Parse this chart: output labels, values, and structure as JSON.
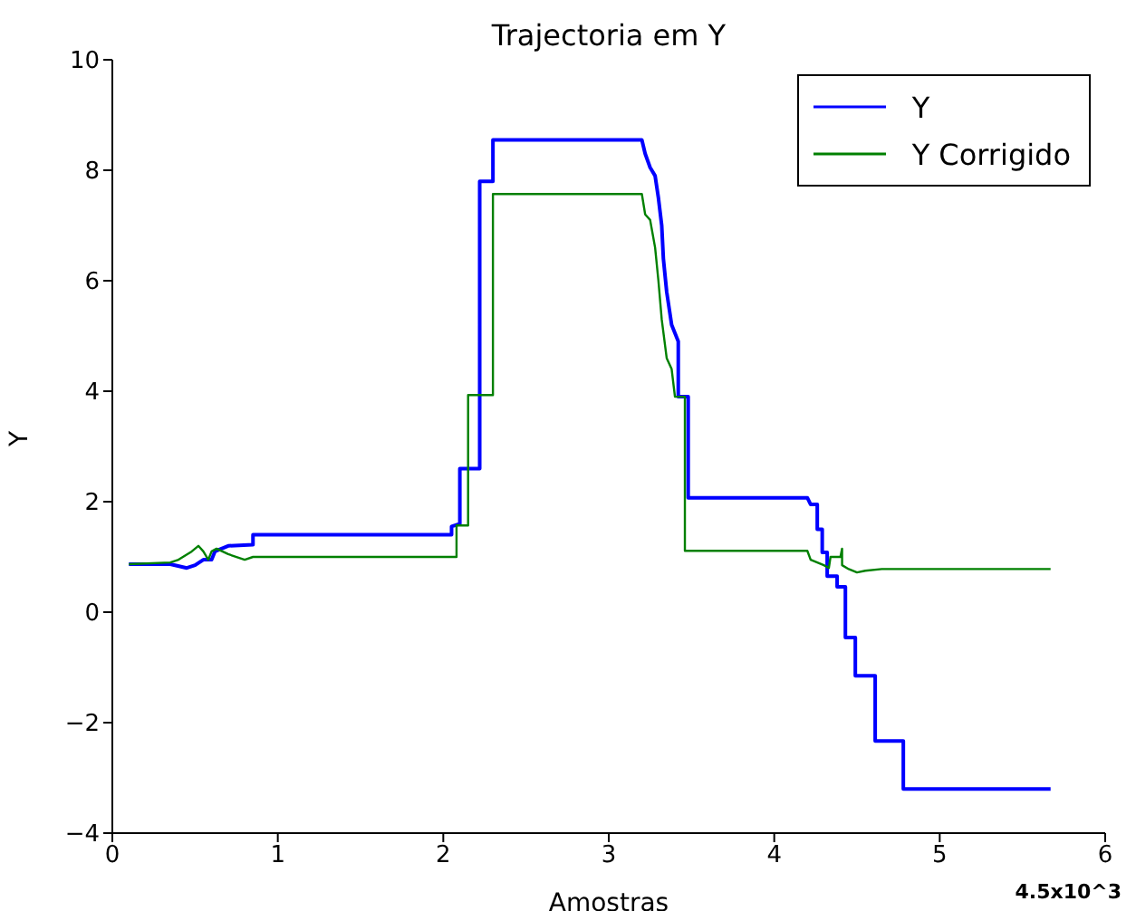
{
  "chart_data": {
    "type": "line",
    "title": "Trajectoria em Y",
    "xlabel": "Amostras",
    "ylabel": "Y",
    "annotations": [
      "4.5x10^3"
    ],
    "xlim": [
      0,
      6
    ],
    "xticks": [
      0,
      1,
      2,
      3,
      4,
      5,
      6
    ],
    "ylim": [
      -4,
      10
    ],
    "yticks": [
      {
        "value": -4,
        "label": "−4"
      },
      {
        "value": -2,
        "label": "−2"
      },
      0,
      2,
      4,
      6,
      8,
      10
    ],
    "grid": false,
    "legend": "top right",
    "marker": "none",
    "line_style": "solid",
    "series": [
      {
        "name": "Y",
        "color": "#0000ff",
        "x": [
          0.1,
          0.35,
          0.45,
          0.5,
          0.55,
          0.6,
          0.62,
          0.7,
          0.85,
          0.85,
          2.05,
          2.05,
          2.1,
          2.1,
          2.22,
          2.22,
          2.3,
          2.3,
          3.2,
          3.22,
          3.25,
          3.28,
          3.3,
          3.32,
          3.33,
          3.35,
          3.38,
          3.42,
          3.42,
          3.48,
          3.48,
          4.2,
          4.22,
          4.26,
          4.26,
          4.29,
          4.29,
          4.32,
          4.32,
          4.38,
          4.38,
          4.43,
          4.43,
          4.49,
          4.49,
          4.61,
          4.61,
          4.78,
          4.78,
          5.67
        ],
        "values": [
          0.87,
          0.87,
          0.8,
          0.85,
          0.95,
          0.95,
          1.1,
          1.2,
          1.22,
          1.4,
          1.4,
          1.55,
          1.6,
          2.6,
          2.6,
          7.8,
          7.8,
          8.55,
          8.55,
          8.3,
          8.05,
          7.9,
          7.5,
          7.0,
          6.4,
          5.8,
          5.2,
          4.9,
          3.9,
          3.9,
          2.07,
          2.07,
          1.95,
          1.95,
          1.5,
          1.5,
          1.08,
          1.08,
          0.65,
          0.65,
          0.46,
          0.46,
          -0.46,
          -0.46,
          -1.15,
          -1.15,
          -2.33,
          -2.33,
          -3.2,
          -3.2
        ]
      },
      {
        "name": "Y Corrigido",
        "color": "#008000",
        "x": [
          0.1,
          0.35,
          0.4,
          0.48,
          0.52,
          0.55,
          0.58,
          0.6,
          0.63,
          0.7,
          0.8,
          0.85,
          2.08,
          2.08,
          2.15,
          2.15,
          2.3,
          2.3,
          3.2,
          3.22,
          3.25,
          3.28,
          3.3,
          3.32,
          3.35,
          3.38,
          3.4,
          3.46,
          3.46,
          4.2,
          4.22,
          4.3,
          4.33,
          4.34,
          4.4,
          4.41,
          4.41,
          4.45,
          4.5,
          4.55,
          4.65,
          5.67
        ],
        "values": [
          0.87,
          0.9,
          0.95,
          1.1,
          1.2,
          1.1,
          0.95,
          1.1,
          1.15,
          1.05,
          0.95,
          1.0,
          1.0,
          1.57,
          1.57,
          3.93,
          3.93,
          7.57,
          7.57,
          7.2,
          7.1,
          6.6,
          6.0,
          5.3,
          4.6,
          4.4,
          3.9,
          3.9,
          1.11,
          1.11,
          0.95,
          0.85,
          0.8,
          1.0,
          1.0,
          1.15,
          0.85,
          0.78,
          0.72,
          0.75,
          0.78,
          0.78
        ]
      }
    ]
  }
}
